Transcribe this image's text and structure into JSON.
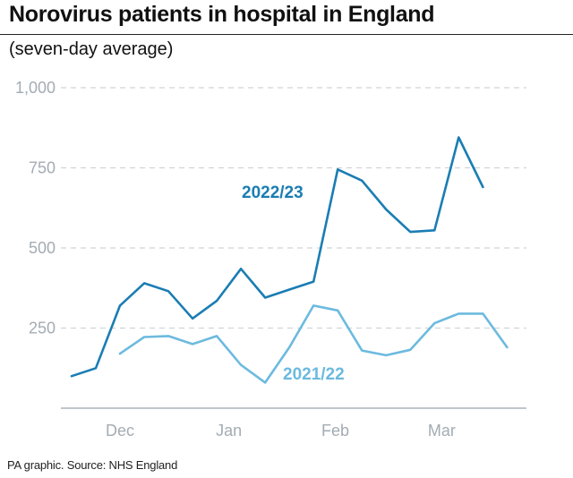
{
  "title": "Norovirus patients in hospital in England",
  "subtitle": "(seven-day average)",
  "footer": "PA graphic. Source: NHS England",
  "chart_data": {
    "type": "line",
    "title": "Norovirus patients in hospital in England",
    "subtitle": "(seven-day average)",
    "x_unit": "week index (Dec, Jan, Feb, Mar tick positions at 2, 6.5, 10.9, 15.3)",
    "xlim": [
      0,
      18.8
    ],
    "ylim": [
      0,
      1000
    ],
    "y_ticks": [
      250,
      500,
      750,
      1000
    ],
    "y_tick_labels": [
      "250",
      "500",
      "750",
      "1,000"
    ],
    "x_ticks": [
      2,
      6.5,
      10.9,
      15.3
    ],
    "x_tick_labels": [
      "Dec",
      "Jan",
      "Feb",
      "Mar"
    ],
    "grid": true,
    "series": [
      {
        "name": "2022/23",
        "color": "#1a7db3",
        "x": [
          0,
          1,
          2,
          3,
          4,
          5,
          6,
          7,
          8,
          9,
          10,
          11,
          12,
          13,
          14,
          15,
          16,
          17
        ],
        "y": [
          100,
          125,
          320,
          390,
          365,
          280,
          335,
          435,
          345,
          370,
          395,
          745,
          710,
          620,
          550,
          555,
          845,
          690
        ]
      },
      {
        "name": "2021/22",
        "color": "#6cbadf",
        "x": [
          2,
          3,
          4,
          5,
          6,
          7,
          8,
          9,
          10,
          11,
          12,
          13,
          14,
          15,
          16,
          17,
          18
        ],
        "y": [
          170,
          222,
          225,
          200,
          225,
          135,
          80,
          190,
          320,
          305,
          180,
          165,
          182,
          265,
          295,
          295,
          190
        ]
      }
    ]
  }
}
